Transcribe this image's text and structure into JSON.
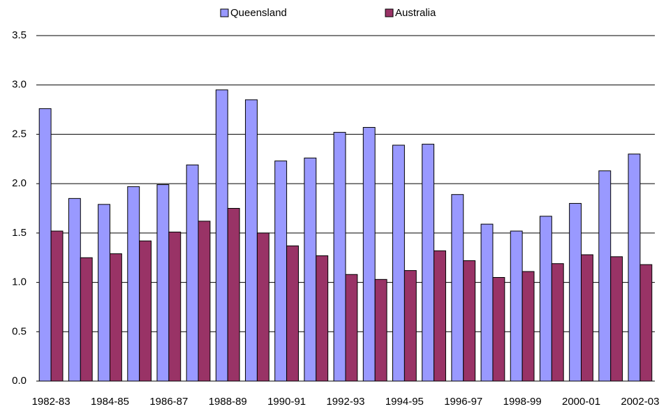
{
  "chart_data": {
    "type": "grouped-bar",
    "categories": [
      "1982-83",
      null,
      "1984-85",
      null,
      "1986-87",
      null,
      "1988-89",
      null,
      "1990-91",
      null,
      "1992-93",
      null,
      "1994-95",
      null,
      "1996-97",
      null,
      "1998-99",
      null,
      "2000-01",
      null,
      "2002-03"
    ],
    "series": [
      {
        "name": "Queensland",
        "color": "#9999ff",
        "values": [
          2.76,
          1.85,
          1.79,
          1.97,
          1.99,
          2.19,
          2.95,
          2.85,
          2.23,
          2.26,
          2.52,
          2.57,
          2.39,
          2.4,
          1.89,
          1.59,
          1.52,
          1.67,
          1.8,
          2.13,
          2.3
        ]
      },
      {
        "name": "Australia",
        "color": "#993366",
        "values": [
          1.52,
          1.25,
          1.29,
          1.42,
          1.51,
          1.62,
          1.75,
          1.5,
          1.37,
          1.27,
          1.08,
          1.03,
          1.12,
          1.32,
          1.22,
          1.05,
          1.11,
          1.19,
          1.28,
          1.26,
          1.18
        ]
      }
    ],
    "ylim": [
      0,
      3.5
    ],
    "yticks": [
      {
        "value": 0,
        "label": "0.0"
      },
      0.5,
      {
        "value": 1,
        "label": "1.0"
      },
      1.5,
      {
        "value": 2,
        "label": "2.0"
      },
      2.5,
      {
        "value": 3,
        "label": "3.0"
      },
      3.5
    ],
    "grid": true,
    "legend": "top"
  }
}
